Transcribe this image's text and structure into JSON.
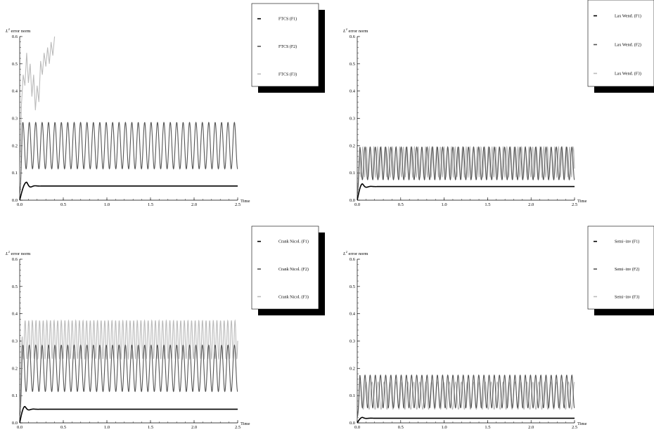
{
  "chart_data": [
    {
      "type": "line",
      "ylabel_base": "L",
      "ylabel_sup": "2",
      "ylabel_rest": " error norm",
      "xlabel": "Time",
      "xlim": [
        0,
        2.5
      ],
      "ylim": [
        0,
        0.6
      ],
      "xticks": [
        "0.0",
        "0.5",
        "1.0",
        "1.5",
        "2.0",
        "2.5"
      ],
      "yticks": [
        "0.0",
        "0.1",
        "0.2",
        "0.3",
        "0.4",
        "0.5",
        "0.6"
      ],
      "series": [
        {
          "name": "FTCS (F1)",
          "color": "#000000",
          "shape": "settle",
          "steady": 0.052,
          "peak": 0.066,
          "t_peak": 0.08,
          "period": 0.0,
          "amp": 0.0
        },
        {
          "name": "FTCS (F2)",
          "color": "#555555",
          "shape": "osc",
          "mean": 0.2,
          "amp": 0.085,
          "period": 0.0735,
          "t_start": 0.0,
          "t_end": 2.5
        },
        {
          "name": "FTCS (F3)",
          "color": "#bbbbbb",
          "shape": "points",
          "x": [
            0.0,
            0.02,
            0.04,
            0.06,
            0.08,
            0.1,
            0.12,
            0.14,
            0.16,
            0.18,
            0.2,
            0.22,
            0.24,
            0.26,
            0.28,
            0.3,
            0.32,
            0.34,
            0.36,
            0.38,
            0.4
          ],
          "y": [
            0.05,
            0.35,
            0.46,
            0.42,
            0.54,
            0.43,
            0.5,
            0.38,
            0.46,
            0.33,
            0.42,
            0.36,
            0.51,
            0.46,
            0.54,
            0.49,
            0.56,
            0.5,
            0.58,
            0.53,
            0.6
          ]
        }
      ]
    },
    {
      "type": "line",
      "ylabel_base": "L",
      "ylabel_sup": "2",
      "ylabel_rest": " error norm",
      "xlabel": "Time",
      "xlim": [
        0,
        2.5
      ],
      "ylim": [
        0,
        0.6
      ],
      "xticks": [
        "0.0",
        "0.5",
        "1.0",
        "1.5",
        "2.0",
        "2.5"
      ],
      "yticks": [
        "0.0",
        "0.1",
        "0.2",
        "0.3",
        "0.4",
        "0.5",
        "0.6"
      ],
      "series": [
        {
          "name": "Lax Wend. (F1)",
          "color": "#000000",
          "shape": "settle",
          "steady": 0.05,
          "peak": 0.06,
          "t_peak": 0.06,
          "period": 0.0,
          "amp": 0.0
        },
        {
          "name": "Lax Wend. (F2)",
          "color": "#555555",
          "shape": "osc",
          "mean": 0.135,
          "amp": 0.06,
          "period": 0.0595,
          "t_start": 0.0,
          "t_end": 2.5
        },
        {
          "name": "Lax Wend. (F3)",
          "color": "#bbbbbb",
          "shape": "osc",
          "mean": 0.14,
          "amp": 0.055,
          "period": 0.0425,
          "t_start": 0.0,
          "t_end": 2.5
        }
      ]
    },
    {
      "type": "line",
      "ylabel_base": "L",
      "ylabel_sup": "2",
      "ylabel_rest": " error norm",
      "xlabel": "Time",
      "xlim": [
        0,
        2.5
      ],
      "ylim": [
        0,
        0.6
      ],
      "xticks": [
        "0.0",
        "0.5",
        "1.0",
        "1.5",
        "2.0",
        "2.5"
      ],
      "yticks": [
        "0.0",
        "0.1",
        "0.2",
        "0.3",
        "0.4",
        "0.5",
        "0.6"
      ],
      "series": [
        {
          "name": "Crank Nicol. (F1)",
          "color": "#000000",
          "shape": "settle",
          "steady": 0.05,
          "peak": 0.06,
          "t_peak": 0.06,
          "period": 0.0,
          "amp": 0.0
        },
        {
          "name": "Crank Nicol. (F2)",
          "color": "#555555",
          "shape": "osc",
          "mean": 0.2,
          "amp": 0.085,
          "period": 0.0735,
          "t_start": 0.0,
          "t_end": 2.5
        },
        {
          "name": "Crank Nicol. (F3)",
          "color": "#bbbbbb",
          "shape": "osc",
          "mean": 0.305,
          "amp": 0.07,
          "period": 0.0415,
          "t_start": 0.0,
          "t_end": 2.5
        }
      ]
    },
    {
      "type": "line",
      "ylabel_base": "L",
      "ylabel_sup": "2",
      "ylabel_rest": " error norm",
      "xlabel": "Time",
      "xlim": [
        0,
        2.5
      ],
      "ylim": [
        0,
        0.6
      ],
      "xticks": [
        "0.0",
        "0.5",
        "1.0",
        "1.5",
        "2.0",
        "2.5"
      ],
      "yticks": [
        "0.0",
        "0.1",
        "0.2",
        "0.3",
        "0.4",
        "0.5",
        "0.6"
      ],
      "series": [
        {
          "name": "Semi−inv (F1)",
          "color": "#000000",
          "shape": "settle",
          "steady": 0.017,
          "peak": 0.02,
          "t_peak": 0.06,
          "period": 0.0,
          "amp": 0.0
        },
        {
          "name": "Semi−inv (F2)",
          "color": "#555555",
          "shape": "osc",
          "mean": 0.115,
          "amp": 0.06,
          "period": 0.0595,
          "t_start": 0.0,
          "t_end": 2.5
        },
        {
          "name": "Semi−inv (F3)",
          "color": "#bbbbbb",
          "shape": "osc",
          "mean": 0.1,
          "amp": 0.05,
          "period": 0.0685,
          "t_start": 0.0,
          "t_end": 2.5
        }
      ]
    }
  ]
}
